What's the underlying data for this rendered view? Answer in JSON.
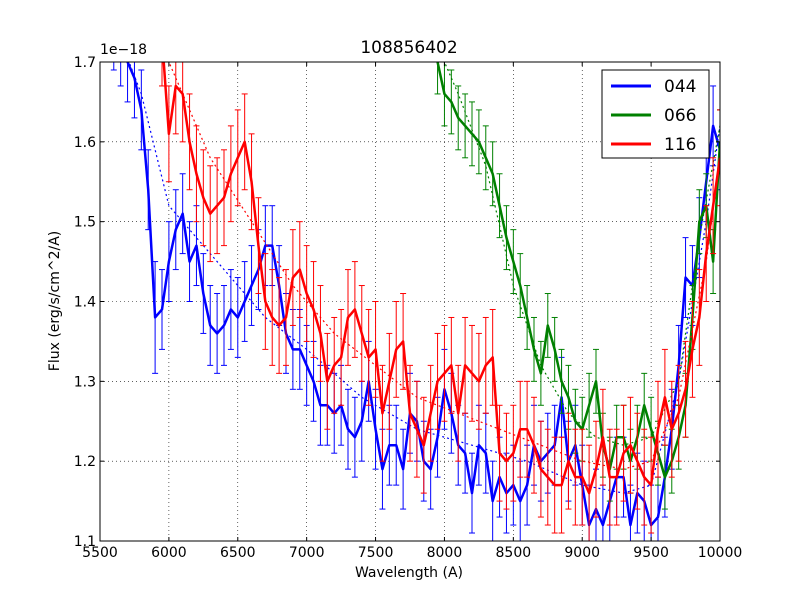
{
  "chart_data": {
    "type": "line",
    "title": "108856402",
    "xlabel": "Wavelength (A)",
    "ylabel": "Flux (erg/s/cm^2/A)",
    "offset_label": "1e−18",
    "xlim": [
      5500,
      10000
    ],
    "ylim": [
      1.1,
      1.7
    ],
    "xticks": [
      5500,
      6000,
      6500,
      7000,
      7500,
      8000,
      8500,
      9000,
      9500,
      10000
    ],
    "yticks": [
      1.1,
      1.2,
      1.3,
      1.4,
      1.5,
      1.6,
      1.7
    ],
    "ytick_labels": [
      "1.1",
      "1.2",
      "1.3",
      "1.4",
      "1.5",
      "1.6",
      "1.7"
    ],
    "grid": true,
    "legend_position": "top-right",
    "series": [
      {
        "name": "044",
        "color": "#0000ff",
        "x": [
          5600,
          5650,
          5700,
          5750,
          5800,
          5850,
          5900,
          5950,
          6000,
          6050,
          6100,
          6150,
          6200,
          6250,
          6300,
          6350,
          6400,
          6450,
          6500,
          6550,
          6600,
          6650,
          6700,
          6750,
          6800,
          6850,
          6900,
          6950,
          7000,
          7050,
          7100,
          7150,
          7200,
          7250,
          7300,
          7350,
          7400,
          7450,
          7500,
          7550,
          7600,
          7650,
          7700,
          7750,
          7800,
          7850,
          7900,
          7950,
          8000,
          8050,
          8100,
          8150,
          8200,
          8250,
          8300,
          8350,
          8400,
          8450,
          8500,
          8550,
          8600,
          8650,
          8700,
          8750,
          8800,
          8850,
          8900,
          8950,
          9000,
          9050,
          9100,
          9150,
          9200,
          9250,
          9300,
          9350,
          9400,
          9450,
          9500,
          9550,
          9600,
          9650,
          9700,
          9750,
          9800,
          9850,
          9900,
          9950,
          10000
        ],
        "y": [
          1.74,
          1.72,
          1.7,
          1.68,
          1.64,
          1.54,
          1.38,
          1.39,
          1.45,
          1.49,
          1.51,
          1.45,
          1.47,
          1.41,
          1.37,
          1.36,
          1.37,
          1.39,
          1.38,
          1.4,
          1.42,
          1.44,
          1.47,
          1.47,
          1.42,
          1.36,
          1.34,
          1.34,
          1.32,
          1.3,
          1.27,
          1.27,
          1.26,
          1.27,
          1.24,
          1.23,
          1.25,
          1.3,
          1.24,
          1.19,
          1.22,
          1.22,
          1.19,
          1.26,
          1.25,
          1.2,
          1.19,
          1.23,
          1.29,
          1.26,
          1.22,
          1.21,
          1.16,
          1.22,
          1.21,
          1.15,
          1.18,
          1.16,
          1.17,
          1.15,
          1.17,
          1.22,
          1.2,
          1.21,
          1.22,
          1.28,
          1.2,
          1.22,
          1.17,
          1.12,
          1.14,
          1.12,
          1.15,
          1.18,
          1.18,
          1.12,
          1.16,
          1.15,
          1.12,
          1.13,
          1.18,
          1.24,
          1.32,
          1.43,
          1.42,
          1.48,
          1.55,
          1.62,
          1.59
        ],
        "err": [
          0.05,
          0.05,
          0.05,
          0.05,
          0.05,
          0.05,
          0.07,
          0.05,
          0.05,
          0.05,
          0.05,
          0.05,
          0.05,
          0.05,
          0.05,
          0.05,
          0.05,
          0.05,
          0.05,
          0.05,
          0.05,
          0.05,
          0.05,
          0.05,
          0.05,
          0.05,
          0.05,
          0.05,
          0.05,
          0.05,
          0.05,
          0.05,
          0.05,
          0.05,
          0.05,
          0.05,
          0.05,
          0.05,
          0.05,
          0.05,
          0.05,
          0.05,
          0.05,
          0.05,
          0.05,
          0.05,
          0.05,
          0.05,
          0.05,
          0.05,
          0.05,
          0.05,
          0.05,
          0.05,
          0.05,
          0.05,
          0.05,
          0.05,
          0.05,
          0.05,
          0.05,
          0.05,
          0.05,
          0.05,
          0.05,
          0.05,
          0.05,
          0.05,
          0.05,
          0.05,
          0.05,
          0.05,
          0.05,
          0.05,
          0.05,
          0.05,
          0.05,
          0.05,
          0.05,
          0.05,
          0.05,
          0.05,
          0.05,
          0.05,
          0.05,
          0.05,
          0.05,
          0.05,
          0.05
        ],
        "model_x": [
          5600,
          5800,
          6000,
          6300,
          6700,
          7000,
          7400,
          7800,
          8200,
          8600,
          9000,
          9300,
          9500,
          9700,
          9900,
          10000
        ],
        "model_y": [
          1.75,
          1.66,
          1.52,
          1.46,
          1.38,
          1.34,
          1.28,
          1.24,
          1.22,
          1.2,
          1.17,
          1.16,
          1.17,
          1.3,
          1.5,
          1.62
        ]
      },
      {
        "name": "066",
        "color": "#008000",
        "x": [
          7950,
          8000,
          8050,
          8100,
          8150,
          8200,
          8250,
          8300,
          8350,
          8400,
          8450,
          8500,
          8550,
          8600,
          8650,
          8700,
          8750,
          8800,
          8850,
          8900,
          8950,
          9000,
          9050,
          9100,
          9150,
          9200,
          9250,
          9300,
          9350,
          9400,
          9450,
          9500,
          9550,
          9600,
          9650,
          9700,
          9750,
          9800,
          9850,
          9900,
          9950,
          10000
        ],
        "y": [
          1.7,
          1.66,
          1.65,
          1.63,
          1.62,
          1.61,
          1.6,
          1.58,
          1.56,
          1.52,
          1.48,
          1.45,
          1.42,
          1.38,
          1.34,
          1.31,
          1.37,
          1.34,
          1.3,
          1.28,
          1.25,
          1.24,
          1.27,
          1.3,
          1.22,
          1.19,
          1.23,
          1.23,
          1.2,
          1.23,
          1.27,
          1.24,
          1.21,
          1.18,
          1.2,
          1.23,
          1.27,
          1.38,
          1.5,
          1.52,
          1.45,
          1.6
        ],
        "err": [
          0.04,
          0.04,
          0.04,
          0.04,
          0.04,
          0.04,
          0.04,
          0.04,
          0.04,
          0.04,
          0.04,
          0.04,
          0.04,
          0.04,
          0.04,
          0.04,
          0.04,
          0.04,
          0.04,
          0.04,
          0.04,
          0.04,
          0.04,
          0.04,
          0.04,
          0.04,
          0.04,
          0.04,
          0.04,
          0.04,
          0.04,
          0.04,
          0.04,
          0.04,
          0.04,
          0.04,
          0.04,
          0.04,
          0.04,
          0.04,
          0.04,
          0.04
        ],
        "model_x": [
          7950,
          8100,
          8300,
          8500,
          8700,
          8900,
          9100,
          9300,
          9500,
          9700,
          9850,
          10000
        ],
        "model_y": [
          1.72,
          1.66,
          1.57,
          1.42,
          1.32,
          1.26,
          1.23,
          1.22,
          1.23,
          1.3,
          1.48,
          1.62
        ]
      },
      {
        "name": "116",
        "color": "#ff0000",
        "x": [
          5950,
          6000,
          6050,
          6100,
          6150,
          6200,
          6250,
          6300,
          6350,
          6400,
          6450,
          6500,
          6550,
          6600,
          6650,
          6700,
          6750,
          6800,
          6850,
          6900,
          6950,
          7000,
          7050,
          7100,
          7150,
          7200,
          7250,
          7300,
          7350,
          7400,
          7450,
          7500,
          7550,
          7600,
          7650,
          7700,
          7750,
          7800,
          7850,
          7900,
          7950,
          8000,
          8050,
          8100,
          8150,
          8200,
          8250,
          8300,
          8350,
          8400,
          8450,
          8500,
          8550,
          8600,
          8650,
          8700,
          8750,
          8800,
          8850,
          8900,
          8950,
          9000,
          9050,
          9100,
          9150,
          9200,
          9250,
          9300,
          9350,
          9400,
          9450,
          9500,
          9550,
          9600,
          9650,
          9700,
          9750,
          9800,
          9850,
          9900,
          9950,
          10000
        ],
        "y": [
          1.73,
          1.61,
          1.67,
          1.66,
          1.6,
          1.56,
          1.53,
          1.51,
          1.52,
          1.53,
          1.56,
          1.58,
          1.6,
          1.55,
          1.47,
          1.4,
          1.38,
          1.37,
          1.38,
          1.43,
          1.44,
          1.41,
          1.39,
          1.36,
          1.3,
          1.32,
          1.33,
          1.38,
          1.39,
          1.36,
          1.33,
          1.34,
          1.26,
          1.3,
          1.34,
          1.35,
          1.26,
          1.24,
          1.22,
          1.26,
          1.3,
          1.31,
          1.32,
          1.26,
          1.32,
          1.31,
          1.3,
          1.32,
          1.33,
          1.21,
          1.2,
          1.21,
          1.24,
          1.24,
          1.22,
          1.19,
          1.18,
          1.17,
          1.17,
          1.2,
          1.18,
          1.18,
          1.16,
          1.19,
          1.23,
          1.18,
          1.18,
          1.21,
          1.22,
          1.2,
          1.18,
          1.17,
          1.24,
          1.28,
          1.24,
          1.26,
          1.29,
          1.34,
          1.38,
          1.46,
          1.52,
          1.58
        ],
        "err": [
          0.06,
          0.06,
          0.06,
          0.06,
          0.06,
          0.06,
          0.06,
          0.06,
          0.06,
          0.06,
          0.06,
          0.06,
          0.06,
          0.06,
          0.06,
          0.06,
          0.06,
          0.06,
          0.06,
          0.06,
          0.06,
          0.06,
          0.06,
          0.06,
          0.06,
          0.06,
          0.06,
          0.06,
          0.06,
          0.06,
          0.06,
          0.06,
          0.06,
          0.06,
          0.06,
          0.06,
          0.06,
          0.06,
          0.06,
          0.06,
          0.06,
          0.06,
          0.06,
          0.06,
          0.06,
          0.06,
          0.06,
          0.06,
          0.06,
          0.06,
          0.06,
          0.06,
          0.06,
          0.06,
          0.06,
          0.06,
          0.06,
          0.06,
          0.06,
          0.06,
          0.06,
          0.06,
          0.06,
          0.06,
          0.06,
          0.06,
          0.06,
          0.06,
          0.06,
          0.06,
          0.06,
          0.06,
          0.06,
          0.06,
          0.06,
          0.06,
          0.06,
          0.06,
          0.06,
          0.06,
          0.06,
          0.06
        ],
        "model_x": [
          5950,
          6100,
          6300,
          6600,
          6900,
          7200,
          7500,
          7800,
          8100,
          8400,
          8700,
          9000,
          9300,
          9500,
          9700,
          9900,
          10000
        ],
        "model_y": [
          1.72,
          1.66,
          1.58,
          1.5,
          1.42,
          1.36,
          1.32,
          1.28,
          1.26,
          1.24,
          1.22,
          1.2,
          1.19,
          1.2,
          1.28,
          1.45,
          1.58
        ]
      }
    ]
  }
}
